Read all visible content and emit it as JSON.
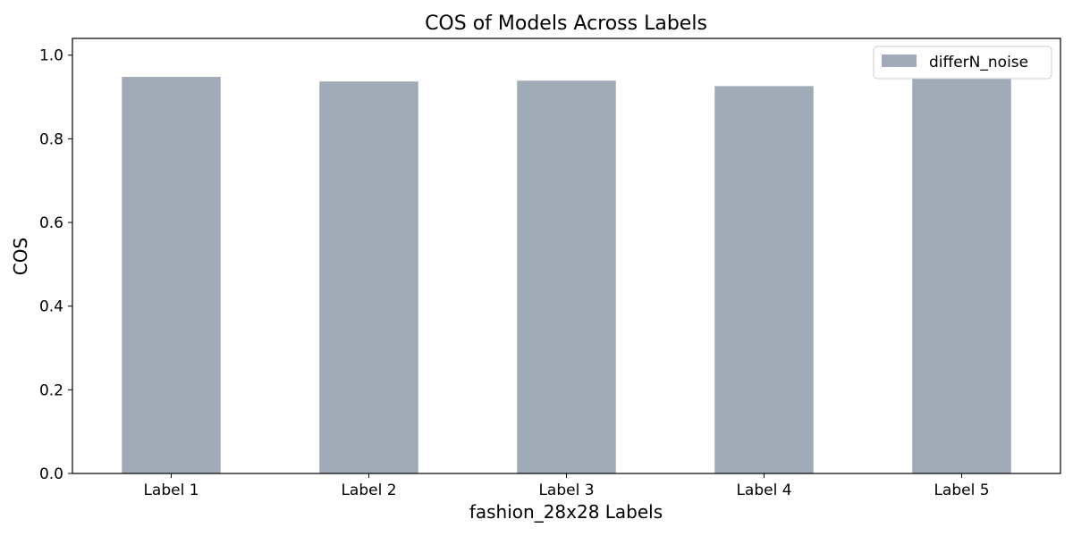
{
  "chart_data": {
    "type": "bar",
    "title": "COS of Models Across Labels",
    "xlabel": "fashion_28x28 Labels",
    "ylabel": "COS",
    "categories": [
      "Label 1",
      "Label 2",
      "Label 3",
      "Label 4",
      "Label 5"
    ],
    "series": [
      {
        "name": "differN_noise",
        "values": [
          0.948,
          0.937,
          0.939,
          0.926,
          0.947
        ],
        "color": "#a0abb7"
      }
    ],
    "ylim": [
      0,
      1.04
    ],
    "yticks": [
      "0.0",
      "0.2",
      "0.4",
      "0.6",
      "0.8",
      "1.0"
    ],
    "grid": false,
    "legend_position": "top-right"
  }
}
